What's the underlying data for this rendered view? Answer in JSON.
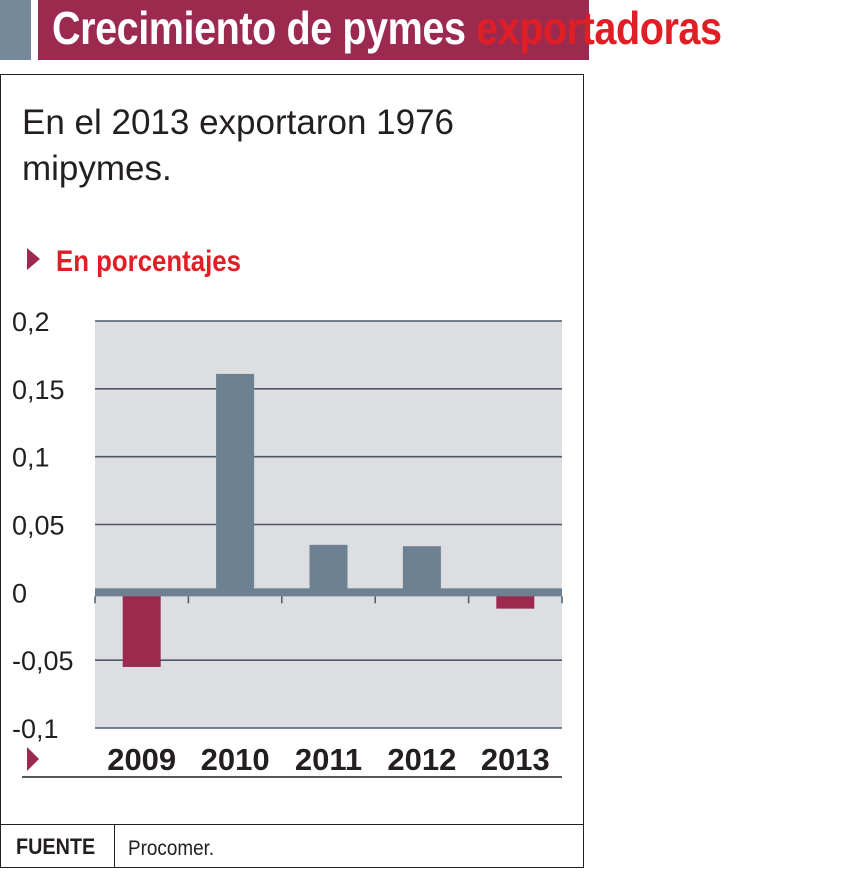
{
  "header": {
    "title_part1": "Crecimiento de pymes",
    "title_part2": "exportadoras"
  },
  "subtitle": "En el 2013 exportaron 1976 mipymes.",
  "unit_label": "En porcentajes",
  "source": {
    "label": "FUENTE",
    "text": "Procomer."
  },
  "colors": {
    "brand": "#9c2a4f",
    "accent_red": "#e01e26",
    "positive_bar": "#6e8192",
    "negative_bar": "#9c2a4f",
    "plot_bg": "#dcdee1",
    "tag_block": "#76899a"
  },
  "chart_data": {
    "type": "bar",
    "title": "Crecimiento de pymes exportadoras",
    "subtitle": "En el 2013 exportaron 1976 mipymes.",
    "ylabel": "En porcentajes",
    "xlabel": "",
    "categories": [
      "2009",
      "2010",
      "2011",
      "2012",
      "2013"
    ],
    "values": [
      -0.055,
      0.161,
      0.035,
      0.034,
      -0.012
    ],
    "ylim": [
      -0.1,
      0.2
    ],
    "yticks": [
      0.2,
      0.15,
      0.1,
      0.05,
      0,
      -0.05,
      -0.1
    ],
    "ytick_labels": [
      "0,2",
      "0,15",
      "0,1",
      "0,05",
      "0",
      "-0,05",
      "-0,1"
    ],
    "grid": true
  }
}
